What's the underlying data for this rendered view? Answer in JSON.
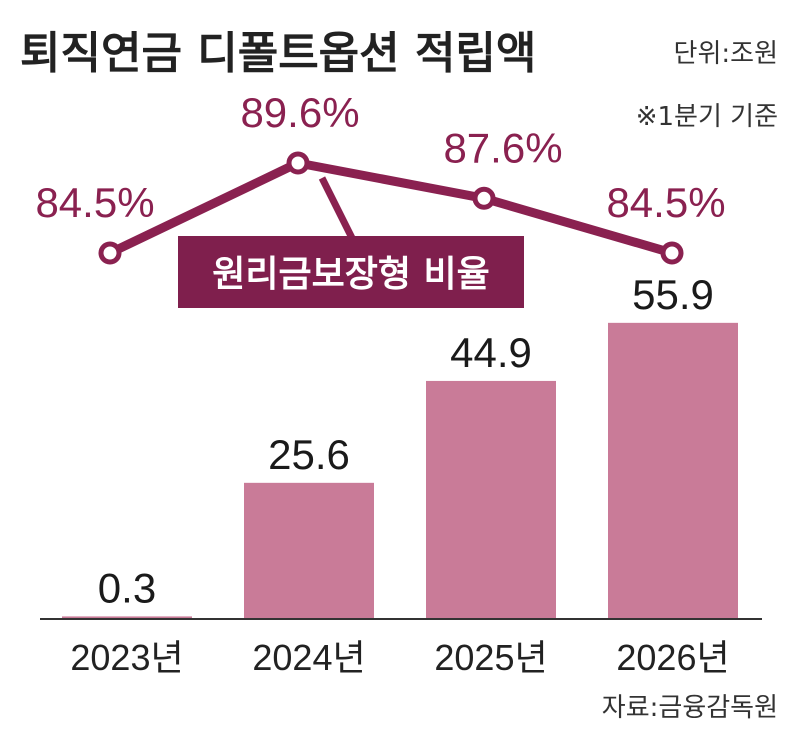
{
  "title": "퇴직연금 디폴트옵션 적립액",
  "unit": "단위:조원",
  "note": "※1분기 기준",
  "source": "자료:금융감독원",
  "colors": {
    "bar": "#c97b98",
    "line": "#8a2150",
    "axis": "#333333"
  },
  "chart_data": {
    "type": "bar",
    "categories": [
      "2023년",
      "2024년",
      "2025년",
      "2026년"
    ],
    "values": [
      0.3,
      25.6,
      44.9,
      55.9
    ],
    "value_labels": [
      "0.3",
      "25.6",
      "44.9",
      "55.9"
    ],
    "ylim": [
      0,
      60
    ],
    "grid": false,
    "overlay": {
      "type": "line",
      "name": "원리금보장형 비율",
      "values": [
        84.5,
        89.6,
        87.6,
        84.5
      ],
      "value_labels": [
        "84.5%",
        "89.6%",
        "87.6%",
        "84.5%"
      ]
    }
  }
}
